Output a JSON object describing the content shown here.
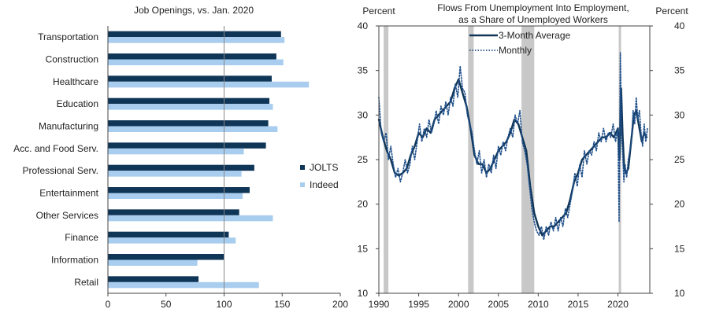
{
  "chart_data": [
    {
      "type": "bar",
      "orientation": "horizontal",
      "title": "Job Openings, vs. Jan. 2020",
      "categories": [
        "Transportation",
        "Construction",
        "Healthcare",
        "Education",
        "Manufacturing",
        "Acc. and Food Serv.",
        "Professional Serv.",
        "Entertainment",
        "Other Services",
        "Finance",
        "Information",
        "Retail"
      ],
      "series": [
        {
          "name": "JOLTS",
          "color": "#0f3557",
          "values": [
            149,
            145,
            141,
            139,
            138,
            136,
            126,
            122,
            113,
            104,
            100,
            78
          ]
        },
        {
          "name": "Indeed",
          "color": "#a9cdee",
          "values": [
            152,
            151,
            173,
            142,
            146,
            117,
            115,
            116,
            142,
            110,
            77,
            130
          ]
        }
      ],
      "xlim": [
        0,
        200
      ],
      "xticks": [
        "0",
        "50",
        "100",
        "150",
        "200"
      ],
      "reference_line": 100,
      "legend_position": "right"
    },
    {
      "type": "line",
      "title": "Flows From Unemployment Into Employment, as a Share of Unemployed Workers",
      "title_lines": [
        "Flows From Unemployment Into Employment,",
        "as a Share of Unemployed  Workers"
      ],
      "ylabel_left": "Percent",
      "ylabel_right": "Percent",
      "xlim": [
        1990,
        2024
      ],
      "ylim": [
        10,
        40
      ],
      "xticks": [
        "1990",
        "1995",
        "2000",
        "2005",
        "2010",
        "2015",
        "2020"
      ],
      "yticks": [
        "10",
        "15",
        "20",
        "25",
        "30",
        "35",
        "40"
      ],
      "recessions": [
        [
          1990.6,
          1991.2
        ],
        [
          2001.2,
          2001.9
        ],
        [
          2007.9,
          2009.5
        ],
        [
          2020.1,
          2020.4
        ]
      ],
      "series": [
        {
          "name": "3-Month Average",
          "color": "#0f3557",
          "style": "solid",
          "x": [
            1990.0,
            1990.5,
            1991.0,
            1991.5,
            1992.0,
            1992.5,
            1993.0,
            1993.5,
            1994.0,
            1994.5,
            1995.0,
            1995.5,
            1996.0,
            1996.5,
            1997.0,
            1997.5,
            1998.0,
            1998.5,
            1999.0,
            1999.5,
            2000.0,
            2000.5,
            2001.0,
            2001.5,
            2002.0,
            2002.5,
            2003.0,
            2003.5,
            2004.0,
            2004.5,
            2005.0,
            2005.5,
            2006.0,
            2006.5,
            2007.0,
            2007.5,
            2008.0,
            2008.5,
            2009.0,
            2009.5,
            2010.0,
            2010.5,
            2011.0,
            2011.5,
            2012.0,
            2012.5,
            2013.0,
            2013.5,
            2014.0,
            2014.5,
            2015.0,
            2015.5,
            2016.0,
            2016.5,
            2017.0,
            2017.5,
            2018.0,
            2018.5,
            2019.0,
            2019.5,
            2020.0,
            2020.2,
            2020.4,
            2020.6,
            2020.8,
            2021.0,
            2021.3,
            2021.6,
            2022.0,
            2022.3,
            2022.6,
            2023.0,
            2023.3,
            2023.6
          ],
          "values": [
            29.5,
            27.5,
            26.0,
            25.0,
            23.5,
            23.2,
            23.5,
            24.0,
            25.5,
            26.5,
            28.0,
            27.5,
            28.5,
            28.0,
            29.5,
            30.0,
            30.5,
            31.0,
            31.5,
            33.0,
            34.0,
            32.5,
            31.0,
            28.5,
            25.5,
            24.5,
            24.5,
            23.5,
            24.0,
            25.0,
            26.0,
            26.5,
            27.0,
            28.0,
            29.5,
            29.0,
            27.5,
            26.0,
            22.0,
            19.0,
            17.5,
            16.5,
            17.0,
            17.5,
            17.5,
            18.0,
            18.5,
            19.0,
            20.5,
            22.5,
            23.5,
            25.0,
            25.5,
            26.0,
            26.5,
            27.0,
            27.5,
            27.5,
            28.0,
            27.5,
            28.5,
            25.0,
            33.0,
            27.5,
            24.0,
            23.5,
            24.0,
            26.5,
            30.0,
            30.5,
            29.0,
            27.0,
            28.0,
            27.5
          ]
        },
        {
          "name": "Monthly",
          "color": "#1f4f8a",
          "style": "dotted",
          "x": [
            1990.0,
            1990.3,
            1990.6,
            1990.9,
            1991.2,
            1991.5,
            1991.8,
            1992.1,
            1992.4,
            1992.7,
            1993.0,
            1993.3,
            1993.6,
            1993.9,
            1994.2,
            1994.5,
            1994.8,
            1995.1,
            1995.4,
            1995.7,
            1996.0,
            1996.3,
            1996.6,
            1996.9,
            1997.2,
            1997.5,
            1997.8,
            1998.1,
            1998.4,
            1998.7,
            1999.0,
            1999.3,
            1999.6,
            1999.9,
            2000.2,
            2000.5,
            2000.8,
            2001.1,
            2001.4,
            2001.7,
            2002.0,
            2002.3,
            2002.6,
            2002.9,
            2003.2,
            2003.5,
            2003.8,
            2004.1,
            2004.4,
            2004.7,
            2005.0,
            2005.3,
            2005.6,
            2005.9,
            2006.2,
            2006.5,
            2006.8,
            2007.1,
            2007.4,
            2007.7,
            2008.0,
            2008.3,
            2008.6,
            2008.9,
            2009.2,
            2009.5,
            2009.8,
            2010.1,
            2010.4,
            2010.7,
            2011.0,
            2011.3,
            2011.6,
            2011.9,
            2012.2,
            2012.5,
            2012.8,
            2013.1,
            2013.4,
            2013.7,
            2014.0,
            2014.3,
            2014.6,
            2014.9,
            2015.2,
            2015.5,
            2015.8,
            2016.1,
            2016.4,
            2016.7,
            2017.0,
            2017.3,
            2017.6,
            2017.9,
            2018.2,
            2018.5,
            2018.8,
            2019.1,
            2019.4,
            2019.7,
            2020.0,
            2020.15,
            2020.3,
            2020.45,
            2020.6,
            2020.75,
            2020.9,
            2021.1,
            2021.3,
            2021.5,
            2021.7,
            2021.9,
            2022.1,
            2022.3,
            2022.5,
            2022.7,
            2022.9,
            2023.1,
            2023.3,
            2023.5,
            2023.7
          ],
          "values": [
            32.0,
            28.0,
            27.0,
            28.0,
            25.0,
            26.5,
            24.5,
            23.0,
            24.0,
            22.5,
            23.5,
            25.0,
            23.5,
            24.5,
            26.5,
            25.0,
            27.0,
            29.0,
            27.0,
            28.5,
            27.5,
            29.5,
            28.0,
            29.0,
            30.5,
            29.0,
            31.0,
            30.0,
            31.5,
            30.0,
            32.0,
            31.0,
            33.5,
            32.0,
            35.5,
            33.0,
            32.5,
            30.0,
            29.0,
            28.0,
            26.0,
            24.5,
            26.0,
            23.5,
            25.0,
            23.0,
            24.5,
            23.5,
            25.5,
            24.0,
            26.5,
            25.5,
            27.0,
            26.0,
            27.5,
            28.5,
            27.5,
            30.0,
            29.0,
            30.5,
            27.0,
            26.0,
            24.5,
            22.0,
            19.5,
            18.0,
            17.0,
            16.5,
            17.5,
            16.0,
            17.5,
            16.5,
            18.0,
            17.0,
            18.5,
            17.0,
            18.5,
            17.5,
            19.5,
            18.5,
            20.0,
            21.5,
            23.5,
            22.0,
            24.5,
            23.0,
            26.0,
            24.5,
            26.0,
            25.5,
            27.0,
            26.0,
            28.0,
            27.0,
            28.5,
            27.0,
            28.0,
            27.5,
            29.0,
            27.0,
            28.5,
            18.0,
            37.0,
            28.0,
            25.5,
            22.5,
            24.5,
            23.0,
            25.0,
            26.0,
            27.0,
            30.5,
            29.0,
            32.0,
            29.5,
            30.5,
            28.0,
            26.5,
            29.0,
            27.0,
            28.5
          ]
        }
      ],
      "legend_position": "top"
    }
  ]
}
